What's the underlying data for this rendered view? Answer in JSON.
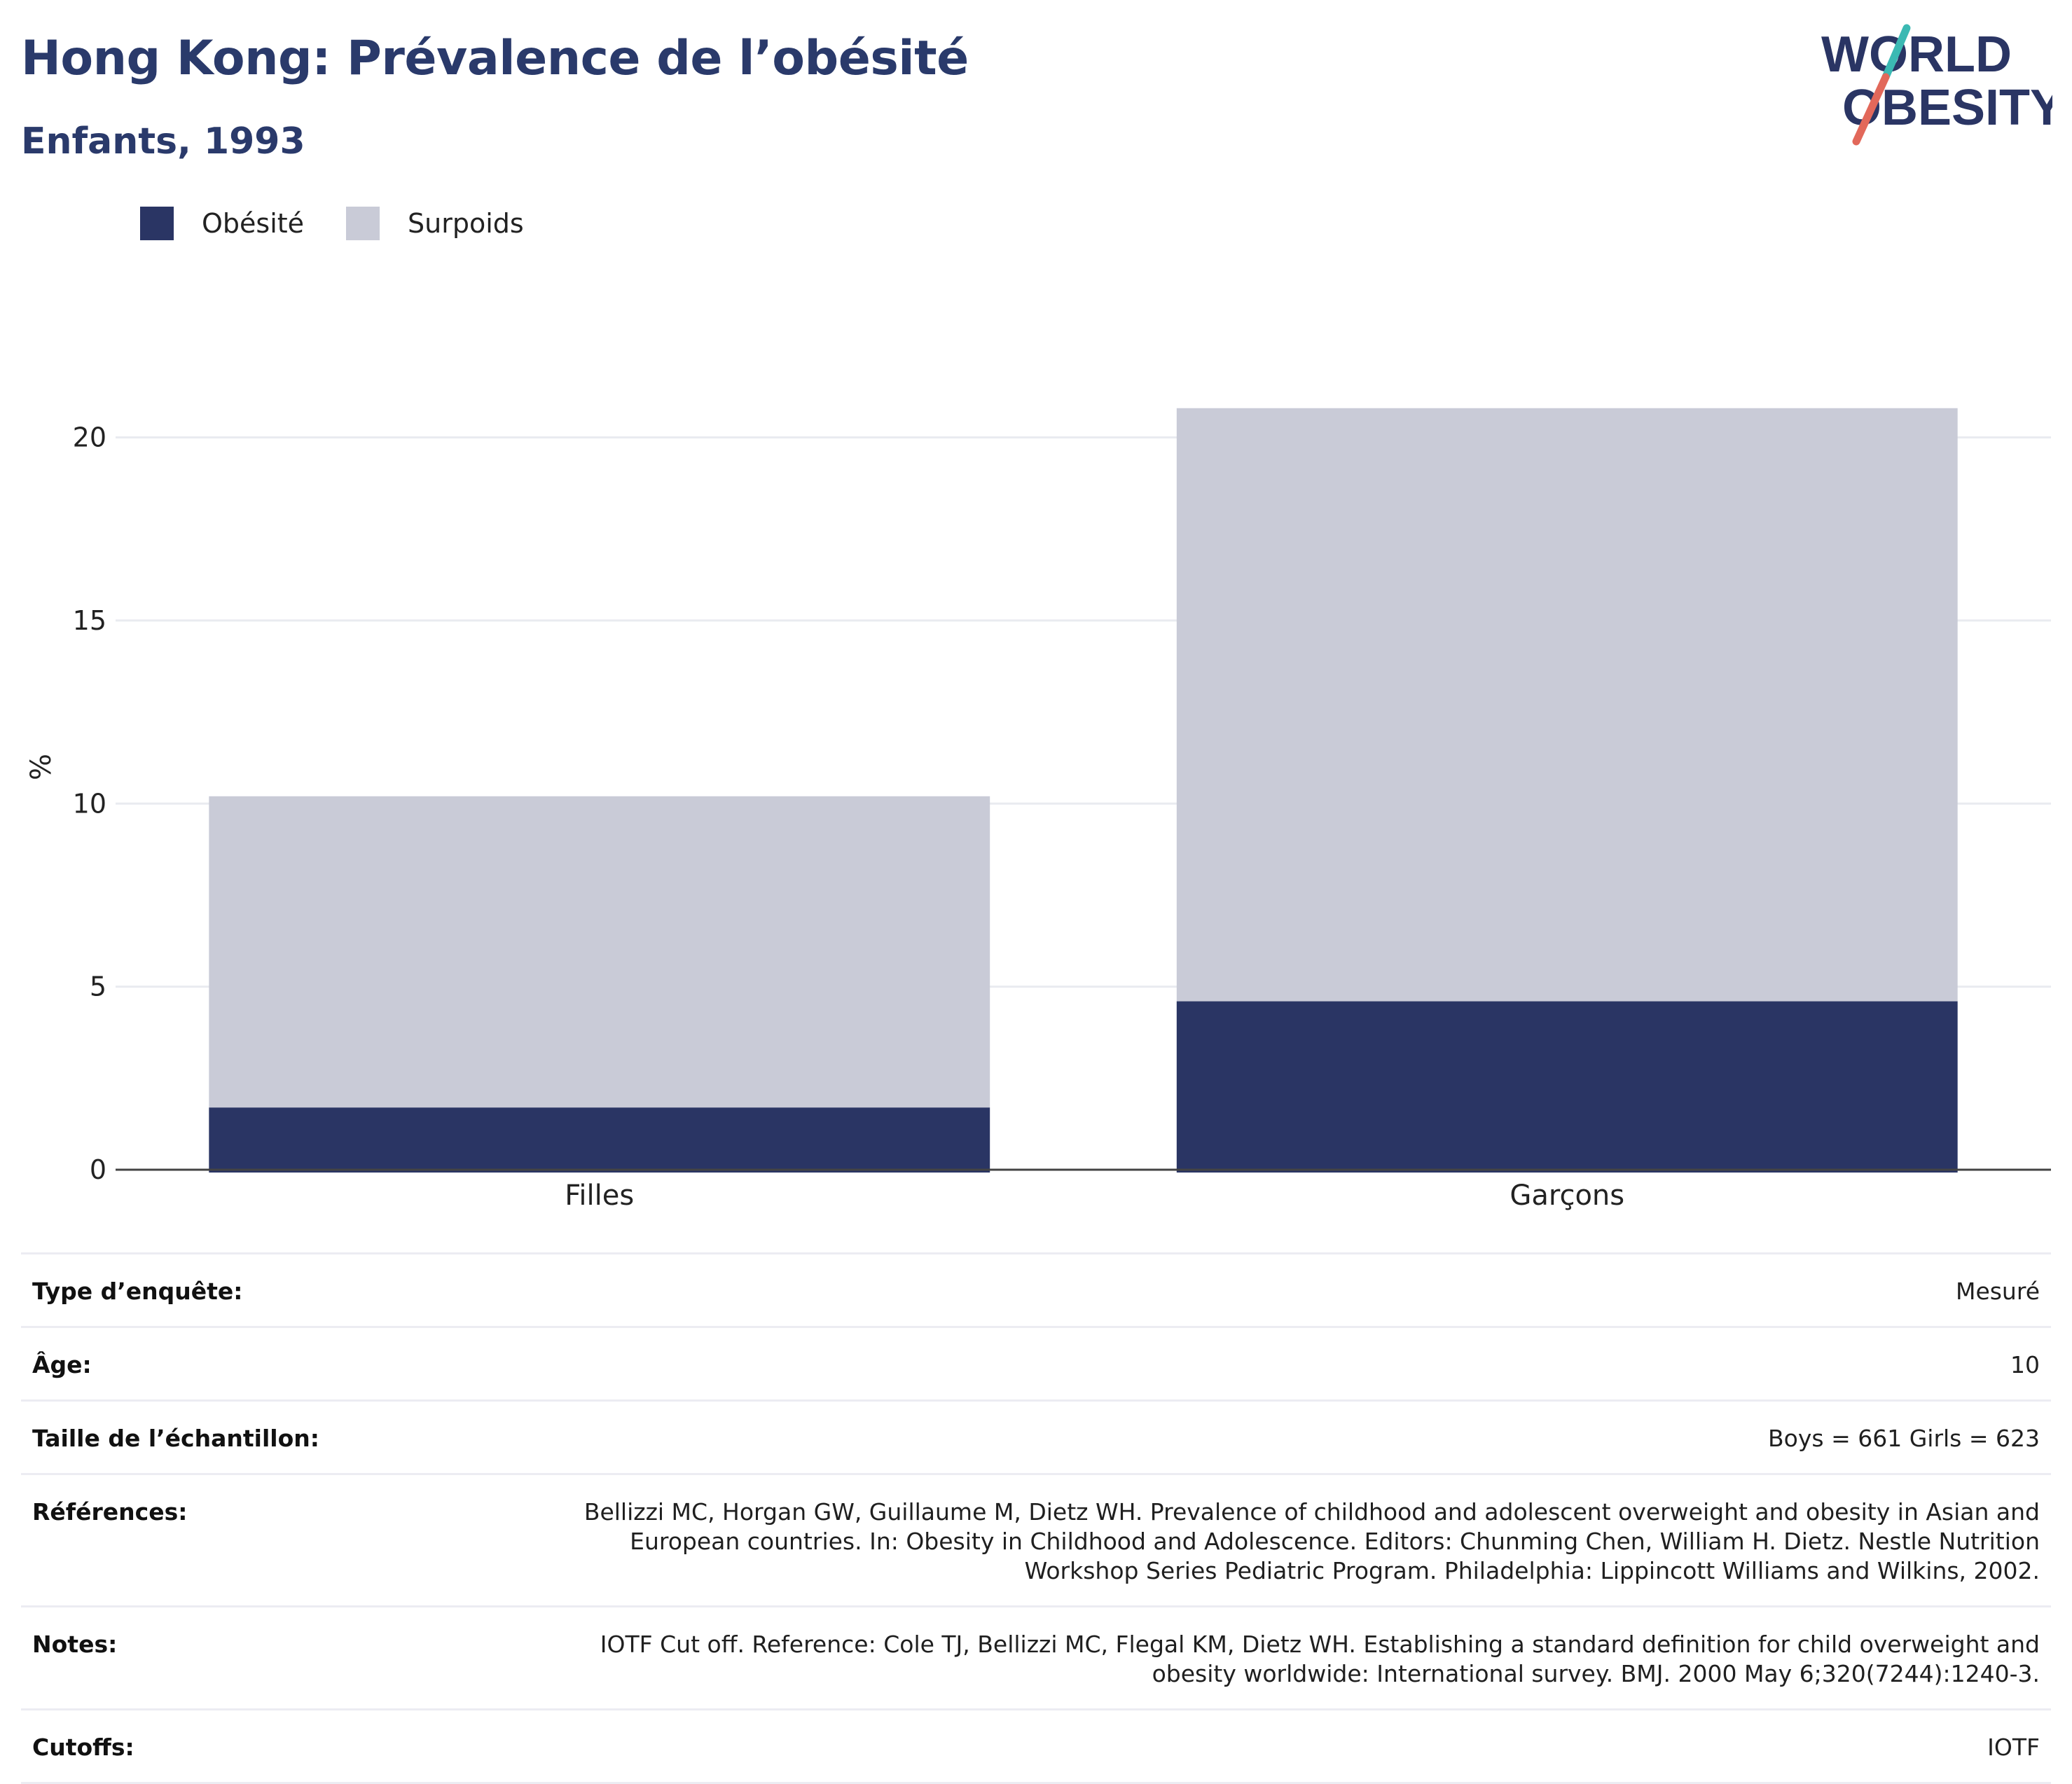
{
  "header": {
    "title": "Hong Kong: Prévalence de l’obésité",
    "subtitle": "Enfants, 1993"
  },
  "logo": {
    "line1": "WORLD",
    "line2": "OBESITY"
  },
  "colors": {
    "obesity": "#2a3564",
    "overweight": "#c9cbd7",
    "title": "#2a3a6b",
    "gridline": "#e9ebf0"
  },
  "chart_data": {
    "type": "bar",
    "stacked": true,
    "categories": [
      "Filles",
      "Garçons"
    ],
    "series": [
      {
        "name": "Obésité",
        "values": [
          1.7,
          4.6
        ]
      },
      {
        "name": "Surpoids",
        "values": [
          8.5,
          16.2
        ]
      }
    ],
    "ylabel": "%",
    "xlabel": "",
    "ylim": [
      0,
      22
    ],
    "yticks": [
      0,
      5,
      10,
      15,
      20
    ],
    "grid": true,
    "legend": "top-left"
  },
  "info": [
    {
      "label": "Type d’enquête:",
      "value": "Mesuré"
    },
    {
      "label": "Âge:",
      "value": "10"
    },
    {
      "label": "Taille de l’échantillon:",
      "value": "Boys = 661 Girls = 623"
    },
    {
      "label": "Références:",
      "value": "Bellizzi MC, Horgan GW, Guillaume M, Dietz WH. Prevalence of childhood and adolescent overweight and obesity in Asian and European countries. In: Obesity in Childhood and Adolescence. Editors: Chunming Chen, William H. Dietz. Nestle Nutrition Workshop Series Pediatric Program. Philadelphia: Lippincott Williams and Wilkins, 2002."
    },
    {
      "label": "Notes:",
      "value": "IOTF Cut off. Reference: Cole TJ, Bellizzi MC, Flegal KM, Dietz WH. Establishing a standard definition for child overweight and obesity worldwide: International survey. BMJ. 2000 May 6;320(7244):1240-3."
    },
    {
      "label": "Cutoffs:",
      "value": "IOTF"
    }
  ]
}
